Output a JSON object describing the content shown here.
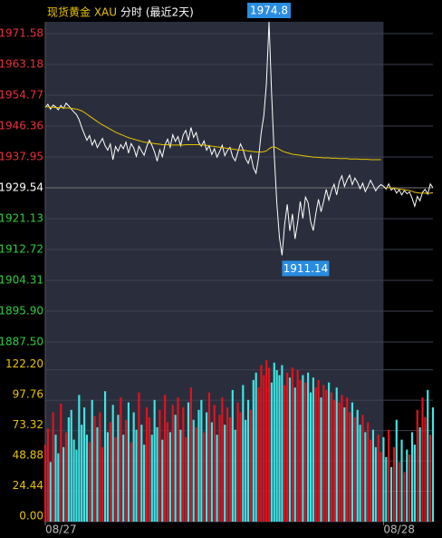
{
  "chart_data": [
    {
      "type": "line",
      "title": "现货黄金 XAU",
      "subtitle": "分时 (最近2天)",
      "xlim": [
        0,
        149
      ],
      "xticks": [
        {
          "value": 0,
          "label": "08/27"
        },
        {
          "value": 130,
          "label": "08/28"
        }
      ],
      "ylim": [
        1883.04,
        1974.8
      ],
      "yticks": [
        1971.58,
        1963.18,
        1954.77,
        1946.36,
        1937.95,
        1929.54,
        1921.13,
        1912.72,
        1904.31,
        {
          "value": 1895.9,
          "label": "1895.90"
        },
        {
          "value": 1887.5,
          "label": "1887.50"
        }
      ],
      "ref_value": 1929.54,
      "up_color": "#e8303a",
      "down_color": "#2ecc40",
      "grid": true,
      "annotations": [
        {
          "text": "1974.8"
        },
        {
          "text": "1911.14"
        }
      ],
      "series": [
        {
          "color": "#ffffff",
          "values": [
            1951.5,
            1952.3,
            1951.0,
            1952.1,
            1951.6,
            1950.8,
            1952.0,
            1951.2,
            1952.6,
            1951.9,
            1951.0,
            1950.2,
            1949.5,
            1948.1,
            1946.0,
            1944.2,
            1942.5,
            1943.8,
            1941.2,
            1942.6,
            1940.5,
            1941.8,
            1943.0,
            1941.0,
            1939.8,
            1941.5,
            1937.2,
            1940.8,
            1939.5,
            1941.3,
            1940.2,
            1942.0,
            1939.0,
            1941.6,
            1940.4,
            1938.1,
            1940.9,
            1939.6,
            1938.4,
            1940.8,
            1942.5,
            1941.1,
            1939.3,
            1936.8,
            1939.9,
            1938.0,
            1941.2,
            1942.8,
            1940.6,
            1944.0,
            1942.2,
            1943.5,
            1941.0,
            1943.9,
            1945.2,
            1942.4,
            1946.0,
            1943.3,
            1944.6,
            1941.8,
            1940.9,
            1942.3,
            1939.8,
            1941.0,
            1938.6,
            1940.2,
            1937.9,
            1939.4,
            1941.1,
            1938.3,
            1939.7,
            1940.6,
            1938.0,
            1936.9,
            1939.2,
            1941.5,
            1940.0,
            1937.5,
            1936.2,
            1938.4,
            1935.0,
            1933.5,
            1937.8,
            1944.6,
            1949.2,
            1958.0,
            1974.8,
            1955.0,
            1938.5,
            1925.3,
            1916.0,
            1911.14,
            1919.5,
            1925.0,
            1917.8,
            1922.4,
            1915.6,
            1920.1,
            1925.8,
            1921.2,
            1927.0,
            1925.5,
            1920.3,
            1917.9,
            1922.6,
            1926.4,
            1923.0,
            1925.9,
            1929.1,
            1926.2,
            1928.8,
            1930.5,
            1927.6,
            1931.2,
            1932.8,
            1929.9,
            1931.7,
            1933.0,
            1930.4,
            1932.2,
            1931.0,
            1929.3,
            1930.8,
            1928.5,
            1929.9,
            1931.6,
            1930.2,
            1928.7,
            1929.8,
            1930.4,
            1930.0,
            1929.2,
            1930.6,
            1928.9,
            1929.5,
            1928.1,
            1929.0,
            1927.6,
            1928.8,
            1927.9,
            1928.4,
            1926.7,
            1924.5,
            1927.2,
            1926.0,
            1928.3,
            1929.1,
            1927.8,
            1930.6,
            1929.5
          ]
        },
        {
          "color": "#e8c300",
          "values": [
            1951.6,
            1951.6,
            1951.5,
            1951.5,
            1951.4,
            1951.4,
            1951.4,
            1951.3,
            1951.3,
            1951.3,
            1951.2,
            1951.1,
            1951.0,
            1950.8,
            1950.5,
            1950.1,
            1949.6,
            1949.1,
            1948.6,
            1948.1,
            1947.6,
            1947.1,
            1946.7,
            1946.3,
            1945.9,
            1945.5,
            1945.1,
            1944.7,
            1944.4,
            1944.1,
            1943.8,
            1943.5,
            1943.2,
            1943.0,
            1942.8,
            1942.6,
            1942.4,
            1942.2,
            1942.0,
            1941.9,
            1941.8,
            1941.7,
            1941.6,
            1941.5,
            1941.4,
            1941.3,
            1941.3,
            1941.3,
            1941.2,
            1941.2,
            1941.2,
            1941.2,
            1941.2,
            1941.2,
            1941.3,
            1941.3,
            1941.3,
            1941.3,
            1941.3,
            1941.3,
            1941.2,
            1941.2,
            1941.1,
            1941.0,
            1940.9,
            1940.8,
            1940.7,
            1940.6,
            1940.5,
            1940.4,
            1940.3,
            1940.2,
            1940.1,
            1940.0,
            1939.9,
            1939.8,
            1939.8,
            1939.7,
            1939.6,
            1939.5,
            1939.4,
            1939.3,
            1939.3,
            1939.3,
            1939.4,
            1939.6,
            1940.2,
            1940.6,
            1940.7,
            1940.4,
            1940.0,
            1939.6,
            1939.3,
            1939.1,
            1938.9,
            1938.7,
            1938.6,
            1938.5,
            1938.4,
            1938.3,
            1938.2,
            1938.1,
            1938.0,
            1937.9,
            1937.9,
            1937.8,
            1937.8,
            1937.7,
            1937.7,
            1937.7,
            1937.6,
            1937.6,
            1937.6,
            1937.5,
            1937.5,
            1937.5,
            1937.5,
            1937.4,
            1937.4,
            1937.4,
            1937.4,
            1937.3,
            1937.3,
            1937.3,
            1937.3,
            1937.2,
            1937.2,
            1937.2,
            1937.2,
            1937.2,
            null,
            1929.5,
            1929.6,
            1929.5,
            1929.4,
            1929.3,
            1929.2,
            1929.1,
            1929.0,
            1928.9,
            1928.8,
            1928.6,
            1928.3,
            1928.2,
            1928.1,
            1928.1,
            1928.1,
            1928.0,
            1928.1,
            1928.2
          ]
        }
      ]
    },
    {
      "type": "bar",
      "ylim": [
        0,
        130
      ],
      "yticks": [
        {
          "value": 0,
          "label": "0.00"
        },
        {
          "value": 24.44,
          "label": "24.44"
        },
        {
          "value": 48.88,
          "label": "48.88"
        },
        {
          "value": 73.32,
          "label": "73.32"
        },
        {
          "value": 97.76,
          "label": "97.76"
        },
        {
          "value": 122.2,
          "label": "122.20"
        }
      ],
      "tick_color": "#e8c300",
      "up_color": "#e8101a",
      "down_color": "#3ee6e6",
      "values": [
        62,
        75,
        48,
        88,
        70,
        55,
        95,
        60,
        72,
        84,
        90,
        66,
        58,
        102,
        78,
        92,
        70,
        64,
        98,
        85,
        76,
        88,
        60,
        105,
        72,
        80,
        94,
        68,
        86,
        100,
        70,
        82,
        96,
        64,
        88,
        74,
        104,
        78,
        62,
        92,
        84,
        70,
        98,
        76,
        90,
        66,
        102,
        80,
        72,
        94,
        86,
        100,
        74,
        92,
        68,
        96,
        108,
        82,
        76,
        90,
        98,
        72,
        88,
        104,
        80,
        94,
        70,
        86,
        100,
        78,
        92,
        84,
        106,
        74,
        96,
        88,
        110,
        82,
        98,
        90,
        114,
        120,
        108,
        126,
        118,
        130,
        124,
        112,
        128,
        122,
        118,
        126,
        110,
        120,
        116,
        124,
        108,
        122,
        114,
        118,
        112,
        120,
        104,
        116,
        108,
        114,
        100,
        110,
        106,
        112,
        104,
        98,
        108,
        96,
        102,
        92,
        100,
        88,
        96,
        84,
        90,
        78,
        86,
        72,
        80,
        66,
        74,
        60,
        70,
        56,
        68,
        52,
        74,
        44,
        60,
        82,
        48,
        66,
        40,
        58,
        54,
        72,
        62,
        90,
        76,
        100,
        84,
        106,
        70,
        92
      ]
    }
  ]
}
